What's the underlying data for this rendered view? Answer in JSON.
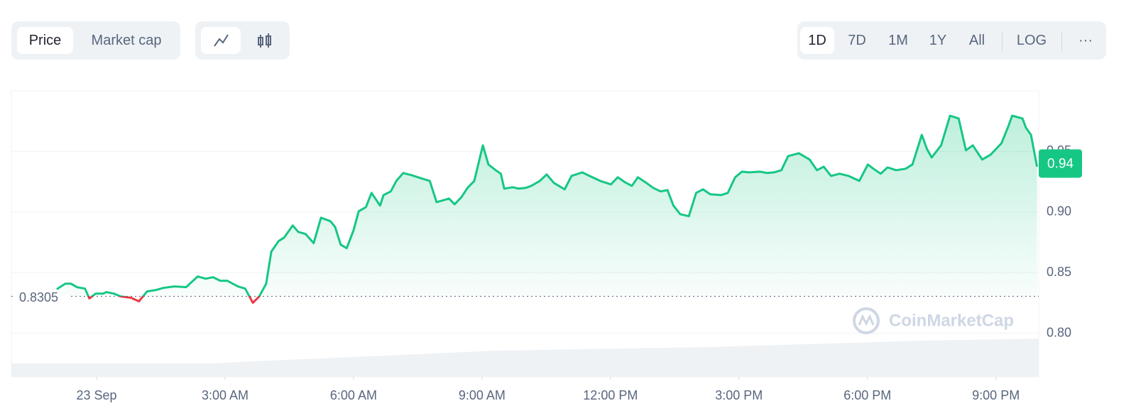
{
  "controls": {
    "metric_tabs": [
      "Price",
      "Market cap"
    ],
    "ranges": [
      "1D",
      "7D",
      "1M",
      "1Y",
      "All"
    ],
    "log": "LOG",
    "more": "···"
  },
  "chart_data": {
    "type": "line",
    "watermark": "CoinMarketCap",
    "x": [
      -0.93,
      -0.73,
      -0.6,
      -0.46,
      -0.27,
      -0.17,
      -0.02,
      0.15,
      0.23,
      0.4,
      0.56,
      0.81,
      0.99,
      1.18,
      1.39,
      1.56,
      1.81,
      2.09,
      2.36,
      2.55,
      2.72,
      2.89,
      3.05,
      3.3,
      3.47,
      3.65,
      3.8,
      3.96,
      4.08,
      4.25,
      4.38,
      4.58,
      4.71,
      4.88,
      5.07,
      5.24,
      5.46,
      5.57,
      5.7,
      5.84,
      6.0,
      6.12,
      6.29,
      6.42,
      6.62,
      6.7,
      6.87,
      7.0,
      7.16,
      7.36,
      7.61,
      7.78,
      7.94,
      8.11,
      8.23,
      8.36,
      8.52,
      8.66,
      8.82,
      9.02,
      9.15,
      9.32,
      9.44,
      9.52,
      9.72,
      9.85,
      10.02,
      10.15,
      10.35,
      10.51,
      10.68,
      10.93,
      11.09,
      11.34,
      11.51,
      11.76,
      12.01,
      12.17,
      12.34,
      12.5,
      12.64,
      12.84,
      13.0,
      13.17,
      13.33,
      13.47,
      13.63,
      13.83,
      14.0,
      14.16,
      14.33,
      14.58,
      14.74,
      14.91,
      15.07,
      15.24,
      15.49,
      15.66,
      15.82,
      15.99,
      16.15,
      16.4,
      16.65,
      16.82,
      16.98,
      17.15,
      17.35,
      17.56,
      17.81,
      18.01,
      18.14,
      18.31,
      18.47,
      18.67,
      18.89,
      19.05,
      19.27,
      19.39,
      19.5,
      19.72,
      19.93,
      20.13,
      20.3,
      20.46,
      20.68,
      20.88,
      21.13,
      21.29,
      21.38,
      21.62,
      21.7,
      21.82,
      21.96
    ],
    "series": [
      {
        "color": "#16c784",
        "below_color": "#ea3943",
        "values": [
          0.8363,
          0.8409,
          0.8409,
          0.838,
          0.8368,
          0.8287,
          0.8327,
          0.8327,
          0.8339,
          0.8327,
          0.8304,
          0.8292,
          0.8263,
          0.8345,
          0.8357,
          0.8374,
          0.8386,
          0.838,
          0.8468,
          0.845,
          0.8462,
          0.8433,
          0.8433,
          0.8386,
          0.8368,
          0.8251,
          0.8304,
          0.8409,
          0.8673,
          0.876,
          0.8789,
          0.8889,
          0.8836,
          0.8819,
          0.8743,
          0.8953,
          0.8924,
          0.8877,
          0.8731,
          0.8702,
          0.8848,
          0.9006,
          0.9041,
          0.9158,
          0.9053,
          0.914,
          0.917,
          0.9257,
          0.9322,
          0.9304,
          0.9275,
          0.9257,
          0.9082,
          0.9099,
          0.9111,
          0.9064,
          0.9123,
          0.9199,
          0.9257,
          0.955,
          0.9392,
          0.9345,
          0.9316,
          0.9193,
          0.9205,
          0.9193,
          0.9199,
          0.9216,
          0.9257,
          0.931,
          0.924,
          0.9187,
          0.9298,
          0.9327,
          0.9298,
          0.9257,
          0.9228,
          0.9287,
          0.9246,
          0.9216,
          0.9287,
          0.924,
          0.9199,
          0.917,
          0.9181,
          0.9053,
          0.8982,
          0.8965,
          0.9158,
          0.9187,
          0.9146,
          0.914,
          0.9158,
          0.9287,
          0.9333,
          0.9327,
          0.9333,
          0.9322,
          0.9327,
          0.9345,
          0.9462,
          0.9485,
          0.9433,
          0.9345,
          0.9374,
          0.9298,
          0.9316,
          0.9298,
          0.9257,
          0.9392,
          0.9357,
          0.9316,
          0.9368,
          0.9345,
          0.9357,
          0.9392,
          0.9637,
          0.952,
          0.945,
          0.955,
          0.9795,
          0.9772,
          0.9509,
          0.955,
          0.9433,
          0.9474,
          0.9567,
          0.9708,
          0.9795,
          0.9772,
          0.9696,
          0.9637,
          0.9374
        ]
      }
    ],
    "reference_value": 0.8305,
    "current_price": 0.94,
    "xlim": [
      -1.99,
      22.0
    ],
    "xticks": [
      {
        "value": 0,
        "label": "23 Sep"
      },
      {
        "value": 3,
        "label": "3:00 AM"
      },
      {
        "value": 6,
        "label": "6:00 AM"
      },
      {
        "value": 9,
        "label": "9:00 AM"
      },
      {
        "value": 12,
        "label": "12:00 PM"
      },
      {
        "value": 15,
        "label": "3:00 PM"
      },
      {
        "value": 18,
        "label": "6:00 PM"
      },
      {
        "value": 21,
        "label": "9:00 PM"
      }
    ],
    "ylim": [
      0.764,
      1.0
    ],
    "yticks": [
      {
        "value": 0.8,
        "label": "0.80"
      },
      {
        "value": 0.85,
        "label": "0.85"
      },
      {
        "value": 0.9,
        "label": "0.90"
      },
      {
        "value": 0.95,
        "label": "0.95"
      }
    ],
    "grid": true
  }
}
